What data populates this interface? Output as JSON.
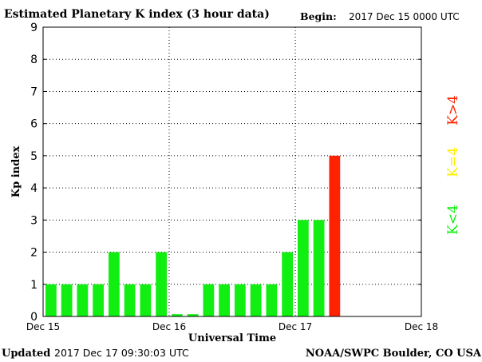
{
  "header": {
    "title": "Estimated Planetary K index (3 hour data)",
    "begin_label": "Begin:",
    "begin_value": "2017 Dec 15 0000 UTC"
  },
  "footer": {
    "updated_label": "Updated",
    "updated_value": "2017 Dec 17 09:30:03 UTC",
    "source": "NOAA/SWPC Boulder, CO USA"
  },
  "legend": {
    "low": "K<4",
    "mid": "K=4",
    "high": "K>4"
  },
  "colors": {
    "low": "#11ee11",
    "mid": "#ffee00",
    "high": "#ff2200"
  },
  "chart_data": {
    "type": "bar",
    "title": "Estimated Planetary K index (3 hour data)",
    "xlabel": "Universal Time",
    "ylabel": "Kp index",
    "ylim": [
      0,
      9
    ],
    "yticks": [
      "0",
      "1",
      "2",
      "3",
      "4",
      "5",
      "6",
      "7",
      "8",
      "9"
    ],
    "xticks": [
      "Dec 15",
      "Dec 16",
      "Dec 17",
      "Dec 18"
    ],
    "slots_total": 24,
    "grid": true,
    "values": [
      1,
      1,
      1,
      1,
      2,
      1,
      1,
      2,
      0.07,
      0.07,
      1,
      1,
      1,
      1,
      1,
      2,
      3,
      3,
      5
    ]
  }
}
